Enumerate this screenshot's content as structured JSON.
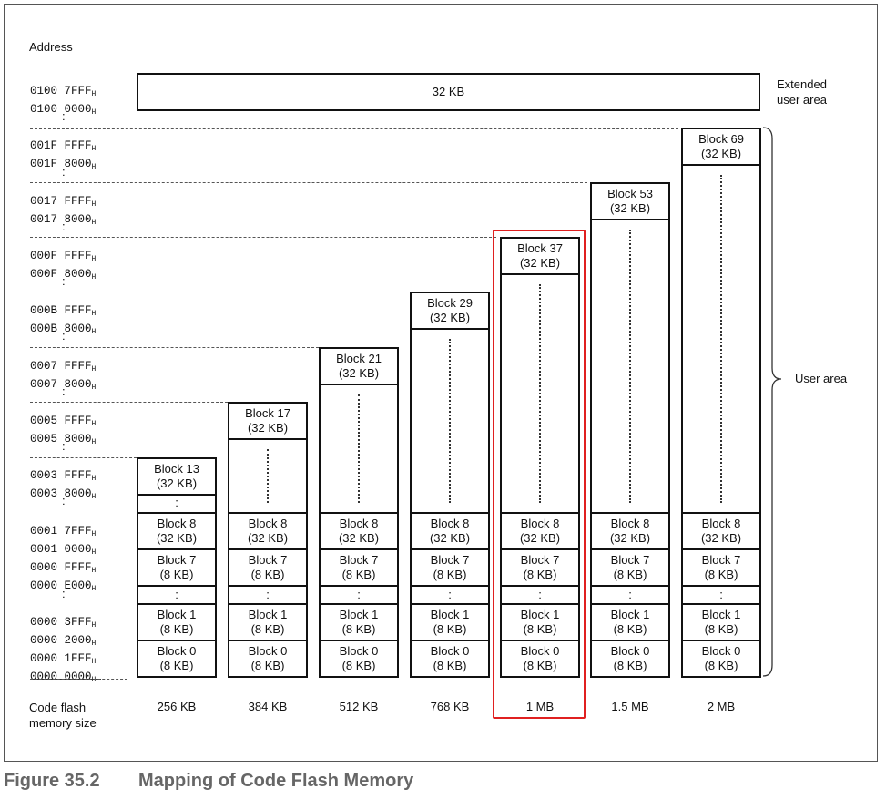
{
  "caption": {
    "number": "Figure 35.2",
    "title": "Mapping of Code Flash Memory"
  },
  "labels": {
    "address": "Address",
    "extended": [
      "Extended",
      "user area"
    ],
    "user_area": "User area",
    "size_header": [
      "Code flash",
      "memory size"
    ],
    "vdots": ":"
  },
  "extended_block": "32 KB",
  "addresses": [
    [
      "0100 7FFF",
      "H"
    ],
    [
      "0100 0000",
      "H"
    ],
    [
      "001F FFFF",
      "H"
    ],
    [
      "001F 8000",
      "H"
    ],
    [
      "0017 FFFF",
      "H"
    ],
    [
      "0017 8000",
      "H"
    ],
    [
      "000F FFFF",
      "H"
    ],
    [
      "000F 8000",
      "H"
    ],
    [
      "000B FFFF",
      "H"
    ],
    [
      "000B 8000",
      "H"
    ],
    [
      "0007 FFFF",
      "H"
    ],
    [
      "0007 8000",
      "H"
    ],
    [
      "0005 FFFF",
      "H"
    ],
    [
      "0005 8000",
      "H"
    ],
    [
      "0003 FFFF",
      "H"
    ],
    [
      "0003 8000",
      "H"
    ],
    [
      "0001 7FFF",
      "H"
    ],
    [
      "0001 0000",
      "H"
    ],
    [
      "0000 FFFF",
      "H"
    ],
    [
      "0000 E000",
      "H"
    ],
    [
      "0000 3FFF",
      "H"
    ],
    [
      "0000 2000",
      "H"
    ],
    [
      "0000 1FFF",
      "H"
    ],
    [
      "0000 0000",
      "H"
    ]
  ],
  "columns": [
    {
      "size": "256 KB",
      "top_block": [
        "Block 13",
        "(32 KB)"
      ]
    },
    {
      "size": "384 KB",
      "top_block": [
        "Block 17",
        "(32 KB)"
      ]
    },
    {
      "size": "512 KB",
      "top_block": [
        "Block 21",
        "(32 KB)"
      ]
    },
    {
      "size": "768 KB",
      "top_block": [
        "Block 29",
        "(32 KB)"
      ]
    },
    {
      "size": "1 MB",
      "top_block": [
        "Block 37",
        "(32 KB)"
      ],
      "highlighted": true
    },
    {
      "size": "1.5 MB",
      "top_block": [
        "Block 53",
        "(32 KB)"
      ]
    },
    {
      "size": "2 MB",
      "top_block": [
        "Block 69",
        "(32 KB)"
      ]
    }
  ],
  "common_blocks": [
    [
      "Block 8",
      "(32 KB)"
    ],
    [
      "Block 7",
      "(8 KB)"
    ],
    [
      ":",
      ""
    ],
    [
      "Block 1",
      "(8 KB)"
    ],
    [
      "Block 0",
      "(8 KB)"
    ]
  ],
  "colors": {
    "highlight": "#e02020",
    "caption": "#666666"
  }
}
